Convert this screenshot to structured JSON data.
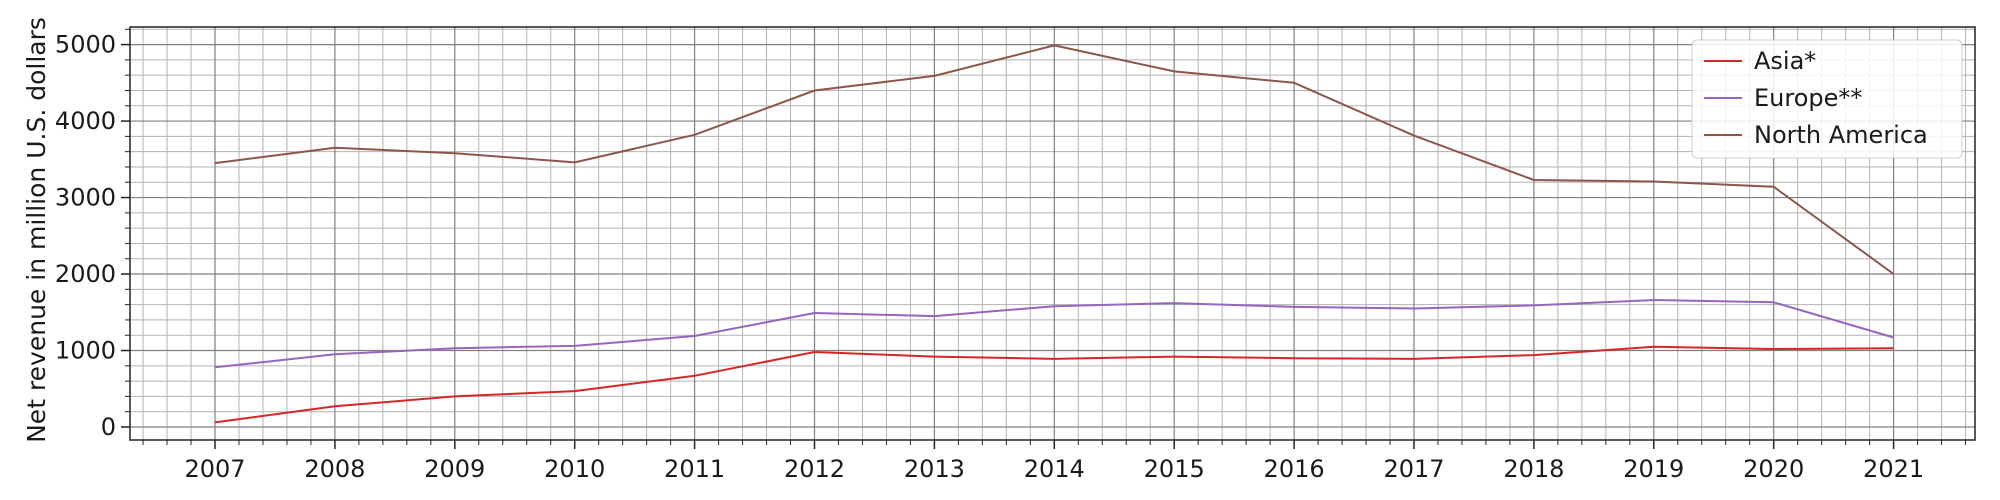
{
  "chart_data": {
    "type": "line",
    "title": "",
    "xlabel": "",
    "ylabel": "Net revenue in million U.S. dollars",
    "x": [
      "2007",
      "2008",
      "2009",
      "2010",
      "2011",
      "2012",
      "2013",
      "2014",
      "2015",
      "2016",
      "2017",
      "2018",
      "2019",
      "2020",
      "2021"
    ],
    "ylim": [
      -170,
      5230
    ],
    "y_ticks": [
      0,
      1000,
      2000,
      3000,
      4000,
      5000
    ],
    "grid": true,
    "legend_position": "top-right",
    "series": [
      {
        "name": "Asia*",
        "color": "#d62728",
        "values": [
          60,
          270,
          400,
          470,
          670,
          980,
          920,
          890,
          920,
          900,
          890,
          940,
          1050,
          1020,
          1030
        ]
      },
      {
        "name": "Europe**",
        "color": "#9467bd",
        "values": [
          780,
          950,
          1030,
          1060,
          1190,
          1490,
          1450,
          1580,
          1620,
          1570,
          1550,
          1590,
          1660,
          1630,
          1170
        ]
      },
      {
        "name": "North America",
        "color": "#8c564b",
        "values": [
          3450,
          3650,
          3580,
          3460,
          3820,
          4400,
          4590,
          4990,
          4650,
          4500,
          3810,
          3230,
          3210,
          3140,
          2000
        ]
      }
    ]
  }
}
